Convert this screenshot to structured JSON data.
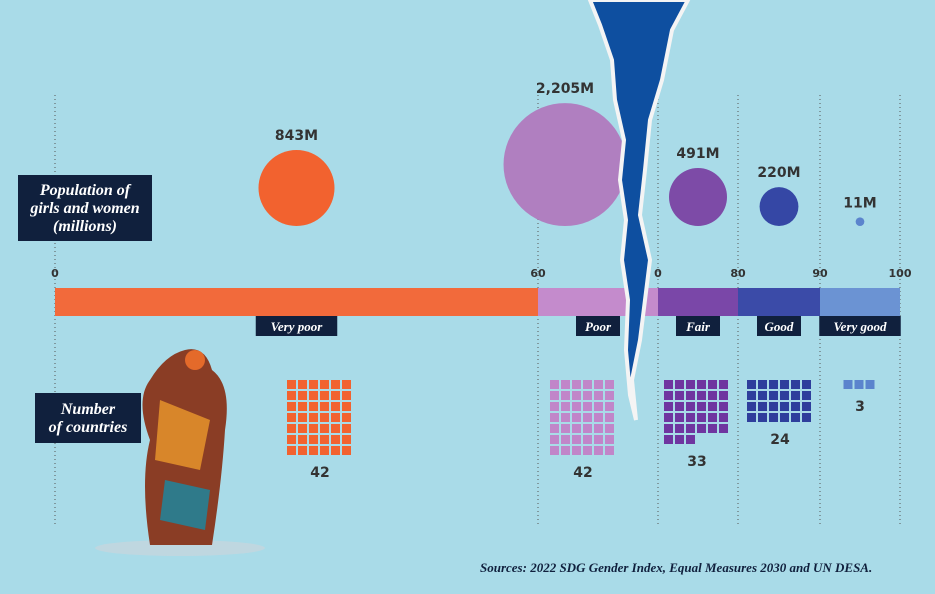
{
  "population_label": [
    "Population of",
    "girls and women",
    "(millions)"
  ],
  "countries_label": [
    "Number",
    "of countries"
  ],
  "scale_ticks": [
    0,
    60,
    {
      "value": 70,
      "label": "0"
    },
    80,
    90,
    100
  ],
  "categories": [
    {
      "name": "Very poor",
      "bar_color": "#f26a3b",
      "circle_color": "#f2622f",
      "square_color": "#f2622f",
      "population": {
        "value": 843,
        "label": "843M"
      },
      "countries": 42
    },
    {
      "name": "Poor",
      "bar_color": "#c48bcc",
      "circle_color": "#b07fc0",
      "square_color": "#c185c9",
      "population": {
        "value": 2205,
        "label": "2,205M"
      },
      "countries": 42
    },
    {
      "name": "Fair",
      "bar_color": "#7a47a8",
      "circle_color": "#7d4ba7",
      "square_color": "#6f35a0",
      "population": {
        "value": 491,
        "label": "491M"
      },
      "countries": 33
    },
    {
      "name": "Good",
      "bar_color": "#3b4ba8",
      "circle_color": "#3547a5",
      "square_color": "#2e3e9c",
      "population": {
        "value": 220,
        "label": "220M"
      },
      "countries": 24
    },
    {
      "name": "Very good",
      "bar_color": "#6b93d3",
      "circle_color": "#5b84cd",
      "square_color": "#5b84cd",
      "population": {
        "value": 11,
        "label": "11M"
      },
      "countries": 3
    }
  ],
  "source": "Sources: 2022 SDG Gender Index, Equal Measures 2030 and UN DESA."
}
